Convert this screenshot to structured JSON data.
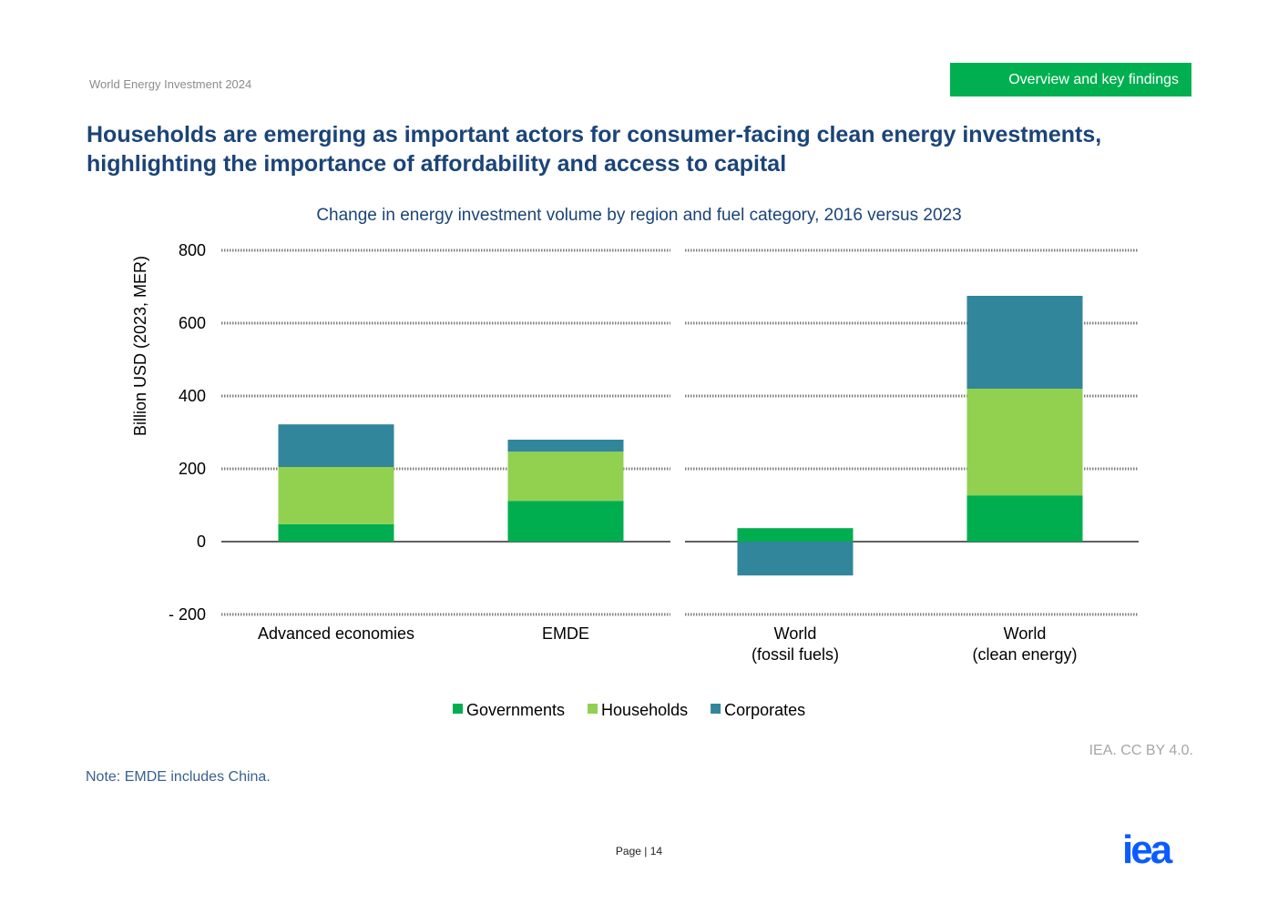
{
  "header": {
    "doc_title": "World Energy Investment 2024",
    "section": "Overview and key findings"
  },
  "title": "Households are emerging as important actors for consumer-facing clean energy investments, highlighting the importance of affordability and access to capital",
  "footer": {
    "note": "Note: EMDE includes China.",
    "source": "IEA. CC BY 4.0.",
    "page": "Page | 14",
    "logo": "iea"
  },
  "chart_data": {
    "type": "bar",
    "stacked": true,
    "title": "Change in energy investment volume by region and fuel category, 2016 versus 2023",
    "ylabel": "Billion USD (2023, MER)",
    "ylim": [
      -200,
      800
    ],
    "yticks": [
      800,
      600,
      400,
      200,
      0,
      -200
    ],
    "ytick_labels": [
      "800",
      "600",
      "400",
      "200",
      "0",
      "- 200"
    ],
    "grid": true,
    "legend": "bottom",
    "categories": [
      [
        "Advanced economies"
      ],
      [
        "EMDE"
      ],
      [
        "World",
        "(fossil fuels)"
      ],
      [
        "World",
        "(clean energy)"
      ]
    ],
    "series": [
      {
        "name": "Governments",
        "color": "#00ae4f",
        "values": [
          48,
          112,
          37,
          127
        ]
      },
      {
        "name": "Households",
        "color": "#92d050",
        "values": [
          157,
          135,
          0,
          293
        ]
      },
      {
        "name": "Corporates",
        "color": "#31869b",
        "values": [
          117,
          33,
          -93,
          255
        ]
      }
    ]
  }
}
